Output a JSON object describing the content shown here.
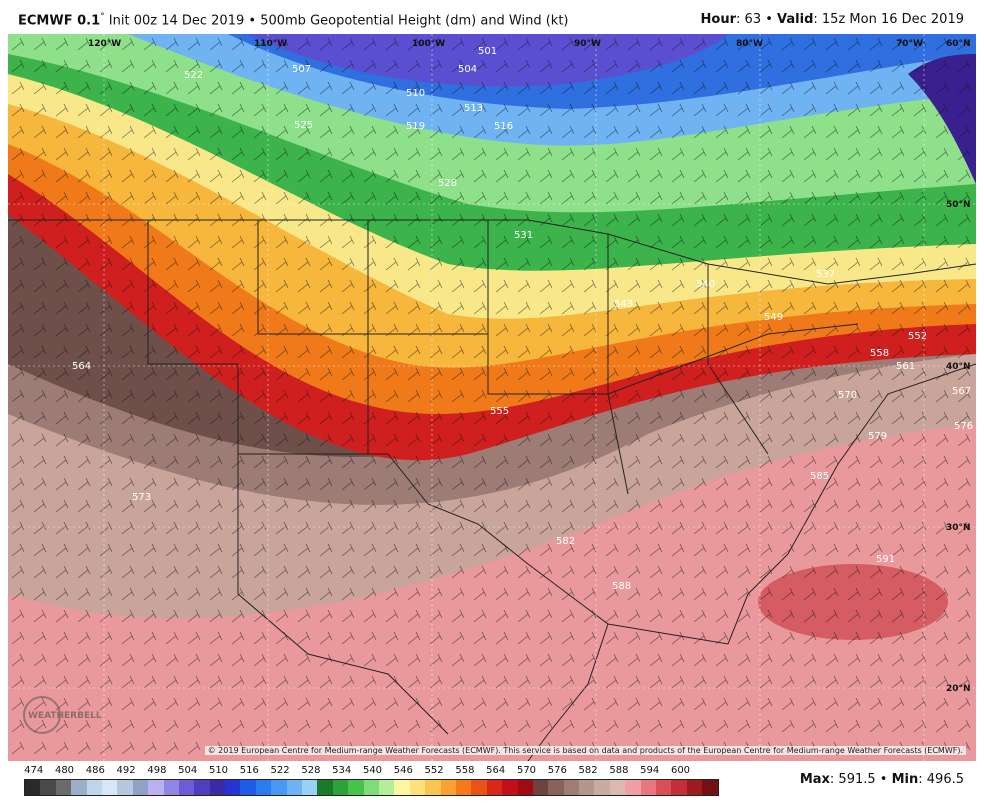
{
  "header": {
    "model": "ECMWF 0.1",
    "degree_mark": "°",
    "init": "Init 00z 14 Dec 2019",
    "sep": "•",
    "product": "500mb Geopotential Height (dm) and Wind (kt)",
    "hour_label": "Hour",
    "hour_value": ": 63",
    "valid_label": "Valid",
    "valid_value": ": 15z Mon 16 Dec 2019"
  },
  "map": {
    "lon_labels": [
      "120°W",
      "110°W",
      "100°W",
      "90°W",
      "80°W",
      "70°W",
      "60°N"
    ],
    "lat_labels": [
      "50°N",
      "40°N",
      "30°N",
      "20°N"
    ],
    "contour_labels": [
      "501",
      "504",
      "507",
      "510",
      "513",
      "516",
      "519",
      "522",
      "525",
      "528",
      "531",
      "537",
      "540",
      "543",
      "549",
      "552",
      "555",
      "558",
      "561",
      "564",
      "567",
      "570",
      "573",
      "576",
      "579",
      "582",
      "585",
      "588",
      "591"
    ],
    "logo_text": "WEATHERBELL",
    "colors": {
      "purple_deep": "#3a1f8f",
      "purple": "#5a4fd0",
      "blue": "#2f6fe0",
      "blue_light": "#6fb3f2",
      "green": "#3cb44b",
      "green_light": "#8ee08a",
      "yellow": "#f8e88a",
      "gold": "#f6b73c",
      "orange": "#f07a1a",
      "red": "#cf1f1f",
      "dark_brown": "#6e4f49",
      "brown": "#9c7c74",
      "tan": "#c9a49a",
      "pink": "#e9999b",
      "deep_pink": "#d65c63"
    }
  },
  "footer": {
    "credit": "© 2019 European Centre for Medium-range Weather Forecasts (ECMWF). This service is based on data and products of the European Centre for Medium-range Weather Forecasts (ECMWF).",
    "scale_labels": [
      "474",
      "480",
      "486",
      "492",
      "498",
      "504",
      "510",
      "516",
      "522",
      "528",
      "534",
      "540",
      "546",
      "552",
      "558",
      "564",
      "570",
      "576",
      "582",
      "588",
      "594",
      "600"
    ],
    "scale_colors": [
      "#2a2a2a",
      "#4a4a4a",
      "#6b6b6b",
      "#9bb0c8",
      "#c0d4ea",
      "#d9e6f5",
      "#b5c8e0",
      "#8fa2c4",
      "#b9b2ee",
      "#8f86e6",
      "#6c5cd6",
      "#4f3fc0",
      "#3b2aa6",
      "#2634d2",
      "#1f5ae8",
      "#2b7cf0",
      "#4b98f4",
      "#6db3f6",
      "#9bd1f8",
      "#1a7a2a",
      "#2ea23a",
      "#48c24c",
      "#7fdc78",
      "#b4ee9c",
      "#fdf6a0",
      "#fde27a",
      "#fbc551",
      "#f8a233",
      "#f47a1c",
      "#ea5316",
      "#d8281a",
      "#c0111a",
      "#a00a12",
      "#6e4240",
      "#866259",
      "#9e7d73",
      "#b5968b",
      "#c9aba0",
      "#dab9ae",
      "#f0a0a4",
      "#e8787e",
      "#d85056",
      "#c42e36",
      "#9e1c20",
      "#741014"
    ],
    "max_label": "Max",
    "max_value": ": 591.5",
    "min_label": "Min",
    "min_value": ": 496.5"
  }
}
